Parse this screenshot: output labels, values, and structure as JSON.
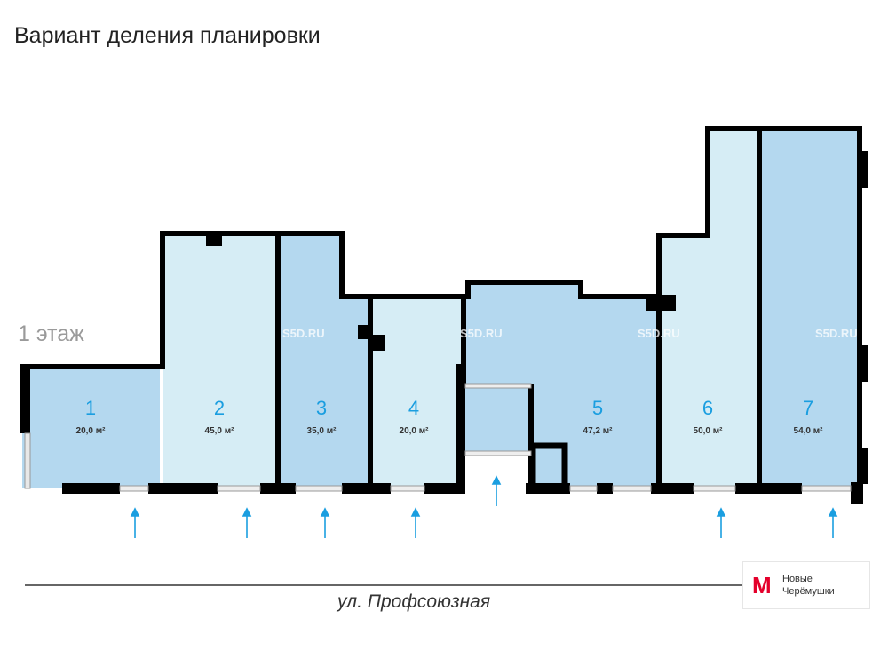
{
  "title": "Вариант деления планировки",
  "floor_label": "1 этаж",
  "watermark": "S5D.RU",
  "rooms": [
    {
      "number": "1",
      "area": "20,0 м²"
    },
    {
      "number": "2",
      "area": "45,0 м²"
    },
    {
      "number": "3",
      "area": "35,0 м²"
    },
    {
      "number": "4",
      "area": "20,0 м²"
    },
    {
      "number": "5",
      "area": "47,2 м²"
    },
    {
      "number": "6",
      "area": "50,0 м²"
    },
    {
      "number": "7",
      "area": "54,0 м²"
    }
  ],
  "street": "ул. Профсоюзная",
  "metro": {
    "icon": "metro-m-icon",
    "letter": "М",
    "line1": "Новые",
    "line2": "Черёмушки",
    "color": "#e4002b"
  },
  "colors": {
    "room_light": "#d6edf5",
    "room_dark": "#b4d8ef",
    "wall": "#000000",
    "label": "#1a9ee0"
  }
}
